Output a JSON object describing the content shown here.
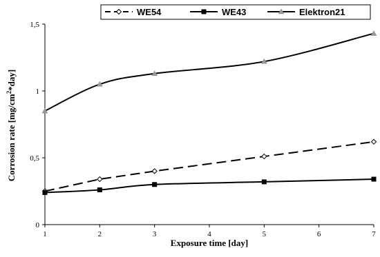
{
  "chart_data": {
    "type": "line",
    "xlabel": "Exposure time [day]",
    "ylabel_parts": {
      "before": "Corrosion rate [mg/cm",
      "sup": "2",
      "after": "*day]"
    },
    "xlim": [
      1,
      7
    ],
    "ylim": [
      0,
      1.5
    ],
    "x_ticks": [
      1,
      2,
      3,
      4,
      5,
      6,
      7
    ],
    "x_tick_labels": [
      "1",
      "2",
      "3",
      "4",
      "5",
      "6",
      "7"
    ],
    "y_ticks": [
      0,
      0.5,
      1,
      1.5
    ],
    "y_tick_labels": [
      "0",
      "0,5",
      "1",
      "1,5"
    ],
    "grid": false,
    "legend_position": "top",
    "series": [
      {
        "name": "WE54",
        "marker": "diamond-open",
        "line_style": "dashed",
        "color": "#000000",
        "x": [
          1,
          2,
          3,
          5,
          7
        ],
        "y": [
          0.25,
          0.34,
          0.4,
          0.51,
          0.62
        ]
      },
      {
        "name": "WE43",
        "marker": "square-filled",
        "line_style": "solid",
        "color": "#000000",
        "x": [
          1,
          2,
          3,
          5,
          7
        ],
        "y": [
          0.24,
          0.26,
          0.3,
          0.32,
          0.34
        ]
      },
      {
        "name": "Elektron21",
        "marker": "triangle-gray",
        "line_style": "solid",
        "color": "#000000",
        "x": [
          1,
          2,
          3,
          5,
          7
        ],
        "y": [
          0.85,
          1.05,
          1.13,
          1.22,
          1.43
        ]
      }
    ]
  }
}
